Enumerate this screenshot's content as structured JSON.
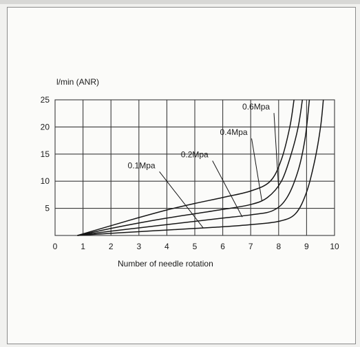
{
  "chart_data": {
    "type": "line",
    "title": "",
    "ylabel": "l/min (ANR)",
    "xlabel": "Number of needle rotation",
    "xlim": [
      0,
      10
    ],
    "ylim": [
      0,
      25
    ],
    "xticks": [
      0,
      1,
      2,
      3,
      4,
      5,
      6,
      7,
      8,
      9,
      10
    ],
    "yticks": [
      5,
      10,
      15,
      20,
      25
    ],
    "grid": true,
    "series": [
      {
        "name": "0.1Mpa",
        "points": [
          [
            0.8,
            0
          ],
          [
            2,
            0.4
          ],
          [
            3,
            0.7
          ],
          [
            4,
            1.0
          ],
          [
            5,
            1.3
          ],
          [
            6,
            1.6
          ],
          [
            7,
            2.0
          ],
          [
            8,
            2.6
          ],
          [
            8.6,
            4
          ],
          [
            9.0,
            8
          ],
          [
            9.3,
            14
          ],
          [
            9.5,
            20
          ],
          [
            9.6,
            25
          ]
        ]
      },
      {
        "name": "0.2Mpa",
        "points": [
          [
            0.8,
            0
          ],
          [
            2,
            0.8
          ],
          [
            3,
            1.4
          ],
          [
            4,
            2.0
          ],
          [
            5,
            2.6
          ],
          [
            6,
            3.2
          ],
          [
            7,
            3.8
          ],
          [
            7.8,
            4.6
          ],
          [
            8.3,
            7
          ],
          [
            8.7,
            12
          ],
          [
            8.95,
            18
          ],
          [
            9.1,
            25
          ]
        ]
      },
      {
        "name": "0.4Mpa",
        "points": [
          [
            0.8,
            0
          ],
          [
            2,
            1.3
          ],
          [
            3,
            2.3
          ],
          [
            4,
            3.2
          ],
          [
            5,
            4.0
          ],
          [
            6,
            4.8
          ],
          [
            7,
            5.7
          ],
          [
            7.6,
            7
          ],
          [
            8.1,
            10
          ],
          [
            8.45,
            15
          ],
          [
            8.7,
            20
          ],
          [
            8.85,
            25
          ]
        ]
      },
      {
        "name": "0.6Mpa",
        "points": [
          [
            0.8,
            0
          ],
          [
            2,
            1.8
          ],
          [
            3,
            3.3
          ],
          [
            4,
            4.7
          ],
          [
            5,
            5.9
          ],
          [
            6,
            7.0
          ],
          [
            7,
            8.2
          ],
          [
            7.7,
            10
          ],
          [
            8.1,
            14
          ],
          [
            8.4,
            20
          ],
          [
            8.55,
            25
          ]
        ]
      }
    ],
    "annotations": [
      {
        "text": "0.1Mpa",
        "at": [
          2.6,
          12.4
        ],
        "points_to": [
          5.3,
          1.4
        ]
      },
      {
        "text": "0.2Mpa",
        "at": [
          4.5,
          14.4
        ],
        "points_to": [
          6.7,
          3.4
        ]
      },
      {
        "text": "0.4Mpa",
        "at": [
          5.9,
          18.5
        ],
        "points_to": [
          7.4,
          6.4
        ]
      },
      {
        "text": "0.6Mpa",
        "at": [
          6.7,
          23.2
        ],
        "points_to": [
          8.0,
          8.6
        ]
      }
    ]
  }
}
